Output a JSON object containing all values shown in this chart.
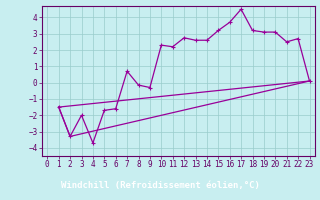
{
  "xlabel": "Windchill (Refroidissement éolien,°C)",
  "bg_color": "#c8eef0",
  "plot_bg_color": "#c8eef0",
  "footer_color": "#330033",
  "line_color": "#990099",
  "grid_color": "#99cccc",
  "spine_color": "#660066",
  "xlim": [
    -0.5,
    23.5
  ],
  "ylim": [
    -4.5,
    4.7
  ],
  "yticks": [
    -4,
    -3,
    -2,
    -1,
    0,
    1,
    2,
    3,
    4
  ],
  "xticks": [
    0,
    1,
    2,
    3,
    4,
    5,
    6,
    7,
    8,
    9,
    10,
    11,
    12,
    13,
    14,
    15,
    16,
    17,
    18,
    19,
    20,
    21,
    22,
    23
  ],
  "series1_x": [
    1,
    2,
    3,
    4,
    5,
    6,
    7,
    8,
    9,
    10,
    11,
    12,
    13,
    14,
    15,
    16,
    17,
    18,
    19,
    20,
    21,
    22,
    23
  ],
  "series1_y": [
    -1.5,
    -3.3,
    -2.0,
    -3.7,
    -1.7,
    -1.6,
    0.7,
    -0.15,
    -0.3,
    2.3,
    2.2,
    2.75,
    2.6,
    2.6,
    3.2,
    3.7,
    4.5,
    3.2,
    3.1,
    3.1,
    2.5,
    2.7,
    0.1
  ],
  "series2_x": [
    1,
    23
  ],
  "series2_y": [
    -1.5,
    0.1
  ],
  "series3_x": [
    1,
    2,
    23
  ],
  "series3_y": [
    -1.5,
    -3.3,
    0.1
  ],
  "line_width": 0.9,
  "marker": "+",
  "marker_size": 3,
  "font_size_label": 6.5,
  "font_size_tick": 5.5,
  "tick_color": "#660066",
  "label_color": "#ffffff",
  "label_bg": "#330033"
}
